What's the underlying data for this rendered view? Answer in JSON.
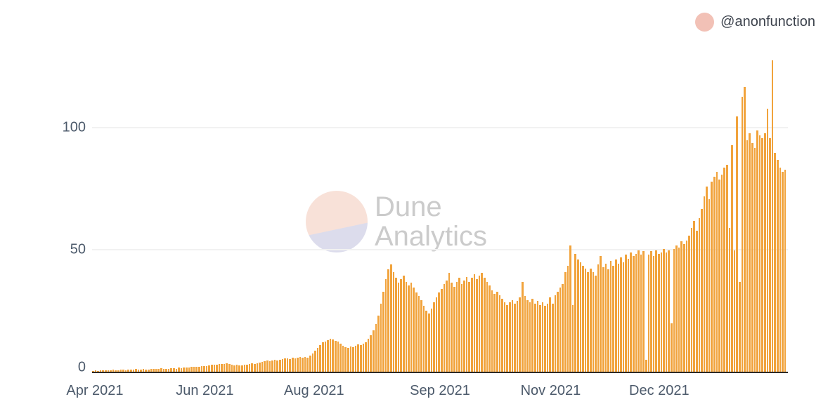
{
  "legend": {
    "user_label": "@anonfunction",
    "marker_color": "#f2c1b6"
  },
  "watermark": {
    "line1": "Dune",
    "line2": "Analytics",
    "circle_top_color": "#f8e1d8",
    "circle_bottom_color": "#dcdcec",
    "text_color": "#cbcbcb"
  },
  "chart_data": {
    "type": "bar",
    "title": "",
    "xlabel": "",
    "ylabel": "",
    "bar_color": "#f1a33c",
    "grid": "horizontal",
    "legend_position": "top-right",
    "ylim": [
      0,
      130
    ],
    "y_ticks": [
      0,
      50,
      100
    ],
    "x_tick_labels": [
      "Apr 2021",
      "Jun 2021",
      "Aug 2021",
      "Sep 2021",
      "Nov 2021",
      "Dec 2021"
    ],
    "x_tick_positions_pct": [
      0.4,
      16.2,
      31.9,
      50.0,
      65.9,
      81.5
    ],
    "values": [
      0.3,
      0.5,
      0.4,
      0.6,
      0.5,
      0.7,
      0.6,
      0.5,
      0.8,
      0.6,
      0.7,
      0.9,
      0.8,
      0.7,
      1.0,
      0.8,
      0.9,
      1.1,
      0.9,
      1.0,
      1.2,
      1.0,
      0.9,
      1.1,
      1.3,
      1.1,
      1.2,
      1.4,
      1.2,
      1.3,
      1.2,
      1.4,
      1.5,
      1.3,
      1.6,
      1.5,
      1.7,
      1.6,
      1.8,
      2.0,
      1.9,
      2.1,
      2.0,
      2.2,
      2.4,
      2.3,
      2.5,
      2.8,
      3.0,
      2.9,
      3.1,
      3.3,
      3.2,
      3.4,
      3.1,
      2.9,
      2.7,
      2.8,
      2.6,
      2.7,
      2.8,
      3.0,
      3.2,
      3.4,
      3.3,
      3.6,
      3.8,
      4.0,
      4.2,
      4.5,
      4.3,
      4.6,
      4.9,
      4.7,
      5.0,
      5.2,
      5.4,
      5.6,
      5.3,
      5.7,
      5.5,
      5.8,
      6.0,
      5.7,
      6.1,
      5.9,
      6.5,
      7.5,
      8.6,
      9.8,
      11.0,
      12.0,
      12.5,
      13.0,
      13.5,
      13.2,
      12.8,
      12.4,
      11.5,
      10.8,
      10.2,
      9.8,
      10.4,
      10.0,
      10.8,
      11.2,
      10.9,
      11.5,
      12.0,
      13.5,
      15.0,
      17.0,
      19.5,
      23.0,
      28.0,
      33.0,
      38.0,
      42.0,
      44.0,
      41.0,
      38.5,
      36.5,
      38.0,
      39.5,
      37.0,
      35.5,
      36.5,
      34.5,
      32.5,
      31.0,
      29.5,
      27.0,
      25.0,
      24.0,
      26.0,
      28.5,
      30.5,
      32.5,
      34.0,
      36.0,
      37.5,
      40.5,
      36.5,
      35.0,
      37.0,
      38.5,
      36.0,
      37.5,
      39.0,
      37.0,
      38.5,
      40.0,
      38.0,
      39.5,
      40.5,
      38.5,
      37.0,
      35.5,
      33.5,
      32.0,
      33.0,
      31.5,
      30.0,
      28.5,
      27.5,
      28.5,
      29.5,
      28.0,
      29.0,
      30.5,
      37.0,
      31.0,
      29.5,
      28.5,
      30.0,
      28.0,
      29.0,
      27.5,
      28.5,
      27.0,
      28.0,
      30.5,
      28.0,
      31.5,
      33.0,
      34.5,
      36.0,
      41.0,
      43.5,
      52.0,
      27.5,
      48.5,
      46.0,
      45.0,
      43.5,
      42.5,
      41.0,
      42.5,
      41.0,
      39.5,
      44.0,
      47.5,
      43.0,
      44.5,
      42.0,
      45.5,
      43.5,
      46.0,
      44.5,
      47.0,
      45.0,
      48.0,
      46.5,
      49.0,
      47.5,
      48.5,
      50.0,
      48.0,
      49.5,
      5.0,
      48.0,
      49.5,
      47.5,
      50.0,
      48.5,
      49.0,
      50.5,
      49.0,
      50.0,
      20.0,
      50.5,
      52.0,
      51.0,
      53.5,
      52.5,
      54.0,
      56.0,
      59.0,
      62.0,
      58.0,
      63.0,
      67.0,
      72.0,
      76.0,
      71.0,
      78.0,
      80.0,
      82.0,
      79.0,
      81.0,
      84.0,
      85.0,
      59.0,
      93.0,
      50.0,
      105.0,
      37.0,
      113.0,
      117.0,
      95.0,
      98.0,
      94.0,
      92.0,
      99.0,
      97.0,
      96.0,
      98.0,
      108.0,
      96.0,
      128.0,
      90.0,
      87.0,
      84.0,
      82.0,
      83.0
    ]
  }
}
